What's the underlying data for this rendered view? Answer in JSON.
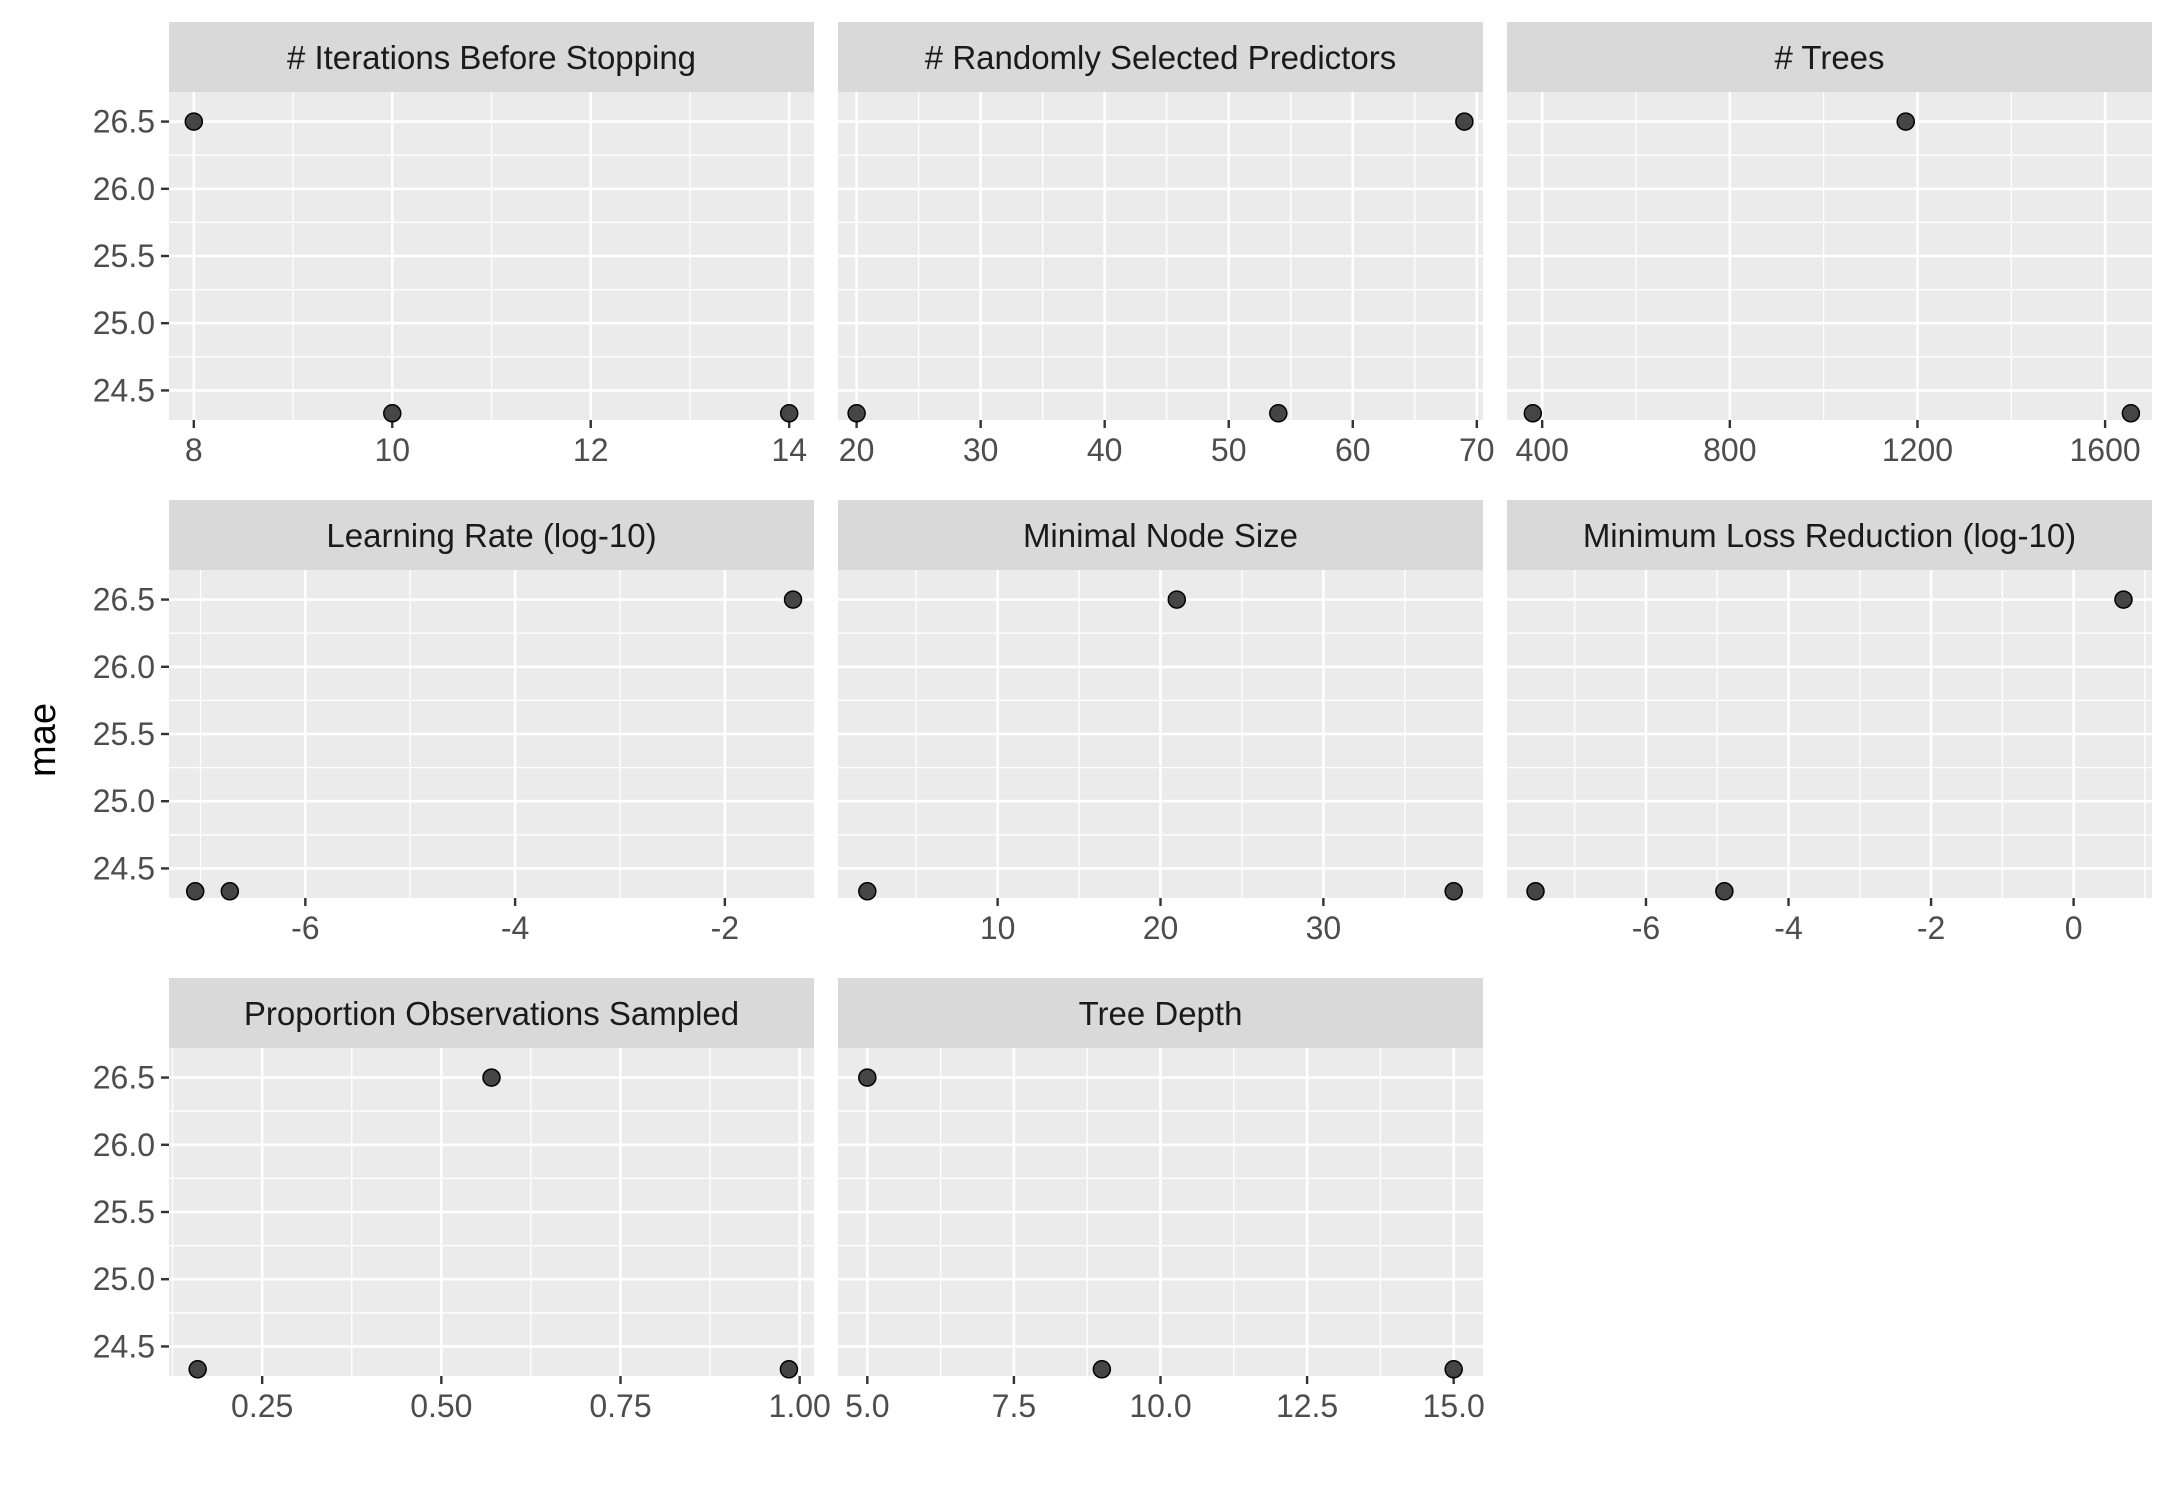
{
  "chart_data": {
    "type": "scatter",
    "layout": "facet-grid",
    "ylabel": "mae",
    "y_ticks": [
      24.5,
      25.0,
      25.5,
      26.0,
      26.5
    ],
    "y_tick_labels": [
      "24.5",
      "25.0",
      "25.5",
      "26.0",
      "26.5"
    ],
    "ylim": [
      24.28,
      26.72
    ],
    "point_color": "#333333",
    "panel_background": "#EBEBEB",
    "strip_background": "#D9D9D9",
    "grid": true,
    "panels": [
      {
        "title": "# Iterations Before Stopping",
        "xlim": [
          7.75,
          14.25
        ],
        "x_ticks": [
          8,
          10,
          12,
          14
        ],
        "x_tick_labels": [
          "8",
          "10",
          "12",
          "14"
        ],
        "points": [
          {
            "x": 8,
            "y": 26.5
          },
          {
            "x": 10,
            "y": 24.33
          },
          {
            "x": 14,
            "y": 24.33
          }
        ]
      },
      {
        "title": "# Randomly Selected Predictors",
        "xlim": [
          18.5,
          70.5
        ],
        "x_ticks": [
          20,
          30,
          40,
          50,
          60,
          70
        ],
        "x_tick_labels": [
          "20",
          "30",
          "40",
          "50",
          "60",
          "70"
        ],
        "points": [
          {
            "x": 20,
            "y": 24.33
          },
          {
            "x": 54,
            "y": 24.33
          },
          {
            "x": 69,
            "y": 26.5
          }
        ]
      },
      {
        "title": "# Trees",
        "xlim": [
          325,
          1700
        ],
        "x_ticks": [
          400,
          800,
          1200,
          1600
        ],
        "x_tick_labels": [
          "400",
          "800",
          "1200",
          "1600"
        ],
        "points": [
          {
            "x": 380,
            "y": 24.33
          },
          {
            "x": 1175,
            "y": 26.5
          },
          {
            "x": 1655,
            "y": 24.33
          }
        ]
      },
      {
        "title": "Learning Rate (log-10)",
        "xlim": [
          -7.3,
          -1.15
        ],
        "x_ticks": [
          -6,
          -4,
          -2
        ],
        "x_tick_labels": [
          "-6",
          "-4",
          "-2"
        ],
        "points": [
          {
            "x": -7.05,
            "y": 24.33
          },
          {
            "x": -6.72,
            "y": 24.33
          },
          {
            "x": -1.35,
            "y": 26.5
          }
        ]
      },
      {
        "title": "Minimal Node Size",
        "xlim": [
          0.2,
          39.8
        ],
        "x_ticks": [
          10,
          20,
          30
        ],
        "x_tick_labels": [
          "10",
          "20",
          "30"
        ],
        "points": [
          {
            "x": 2,
            "y": 24.33
          },
          {
            "x": 21,
            "y": 26.5
          },
          {
            "x": 38,
            "y": 24.33
          }
        ]
      },
      {
        "title": "Minimum Loss Reduction (log-10)",
        "xlim": [
          -7.95,
          1.1
        ],
        "x_ticks": [
          -6,
          -4,
          -2,
          0
        ],
        "x_tick_labels": [
          "-6",
          "-4",
          "-2",
          "0"
        ],
        "points": [
          {
            "x": -7.55,
            "y": 24.33
          },
          {
            "x": -4.9,
            "y": 24.33
          },
          {
            "x": 0.7,
            "y": 26.5
          }
        ]
      },
      {
        "title": "Proportion Observations Sampled",
        "xlim": [
          0.12,
          1.02
        ],
        "x_ticks": [
          0.25,
          0.5,
          0.75,
          1.0
        ],
        "x_tick_labels": [
          "0.25",
          "0.50",
          "0.75",
          "1.00"
        ],
        "points": [
          {
            "x": 0.16,
            "y": 24.33
          },
          {
            "x": 0.57,
            "y": 26.5
          },
          {
            "x": 0.985,
            "y": 24.33
          }
        ]
      },
      {
        "title": "Tree Depth",
        "xlim": [
          4.5,
          15.5
        ],
        "x_ticks": [
          5.0,
          7.5,
          10.0,
          12.5,
          15.0
        ],
        "x_tick_labels": [
          "5.0",
          "7.5",
          "10.0",
          "12.5",
          "15.0"
        ],
        "points": [
          {
            "x": 5,
            "y": 26.5
          },
          {
            "x": 9,
            "y": 24.33
          },
          {
            "x": 15,
            "y": 24.33
          }
        ]
      }
    ]
  }
}
